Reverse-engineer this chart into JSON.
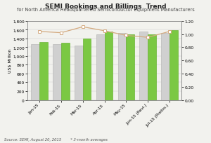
{
  "title": "SEMI Bookings and Billings  Trend",
  "subtitle": "for North America Headquartered Semiconductor Equipment Manufacturers",
  "source": "Source: SEMI, August 20, 2015        * 3-month averages",
  "categories": [
    "Jan-15",
    "Feb-15",
    "Mar-15",
    "Apr-15",
    "May-15",
    "Jun-15 (Revi.)",
    "Jul-15 (Prelim.)"
  ],
  "billings": [
    1270,
    1265,
    1245,
    1490,
    1530,
    1560,
    1530
  ],
  "bookings": [
    1320,
    1295,
    1390,
    1560,
    1500,
    1490,
    1590
  ],
  "book_to_bill": [
    1.04,
    1.02,
    1.11,
    1.05,
    0.98,
    0.95,
    1.04
  ],
  "bar_color_billings": "#d0d0d0",
  "bar_color_bookings": "#7bc843",
  "line_color": "#d4aa80",
  "ylabel_left": "US$ Million",
  "ylim_left": [
    0,
    1800
  ],
  "ylim_right": [
    0.0,
    1.2
  ],
  "yticks_left": [
    0,
    200,
    400,
    600,
    800,
    1000,
    1200,
    1400,
    1600,
    1800
  ],
  "yticks_right": [
    0.0,
    0.2,
    0.4,
    0.6,
    0.8,
    1.0,
    1.2
  ],
  "title_fontsize": 6.5,
  "subtitle_fontsize": 4.8,
  "label_fontsize": 4.5,
  "tick_fontsize": 4.2,
  "legend_fontsize": 4.2,
  "source_fontsize": 3.8,
  "background_color": "#f2f2ee"
}
